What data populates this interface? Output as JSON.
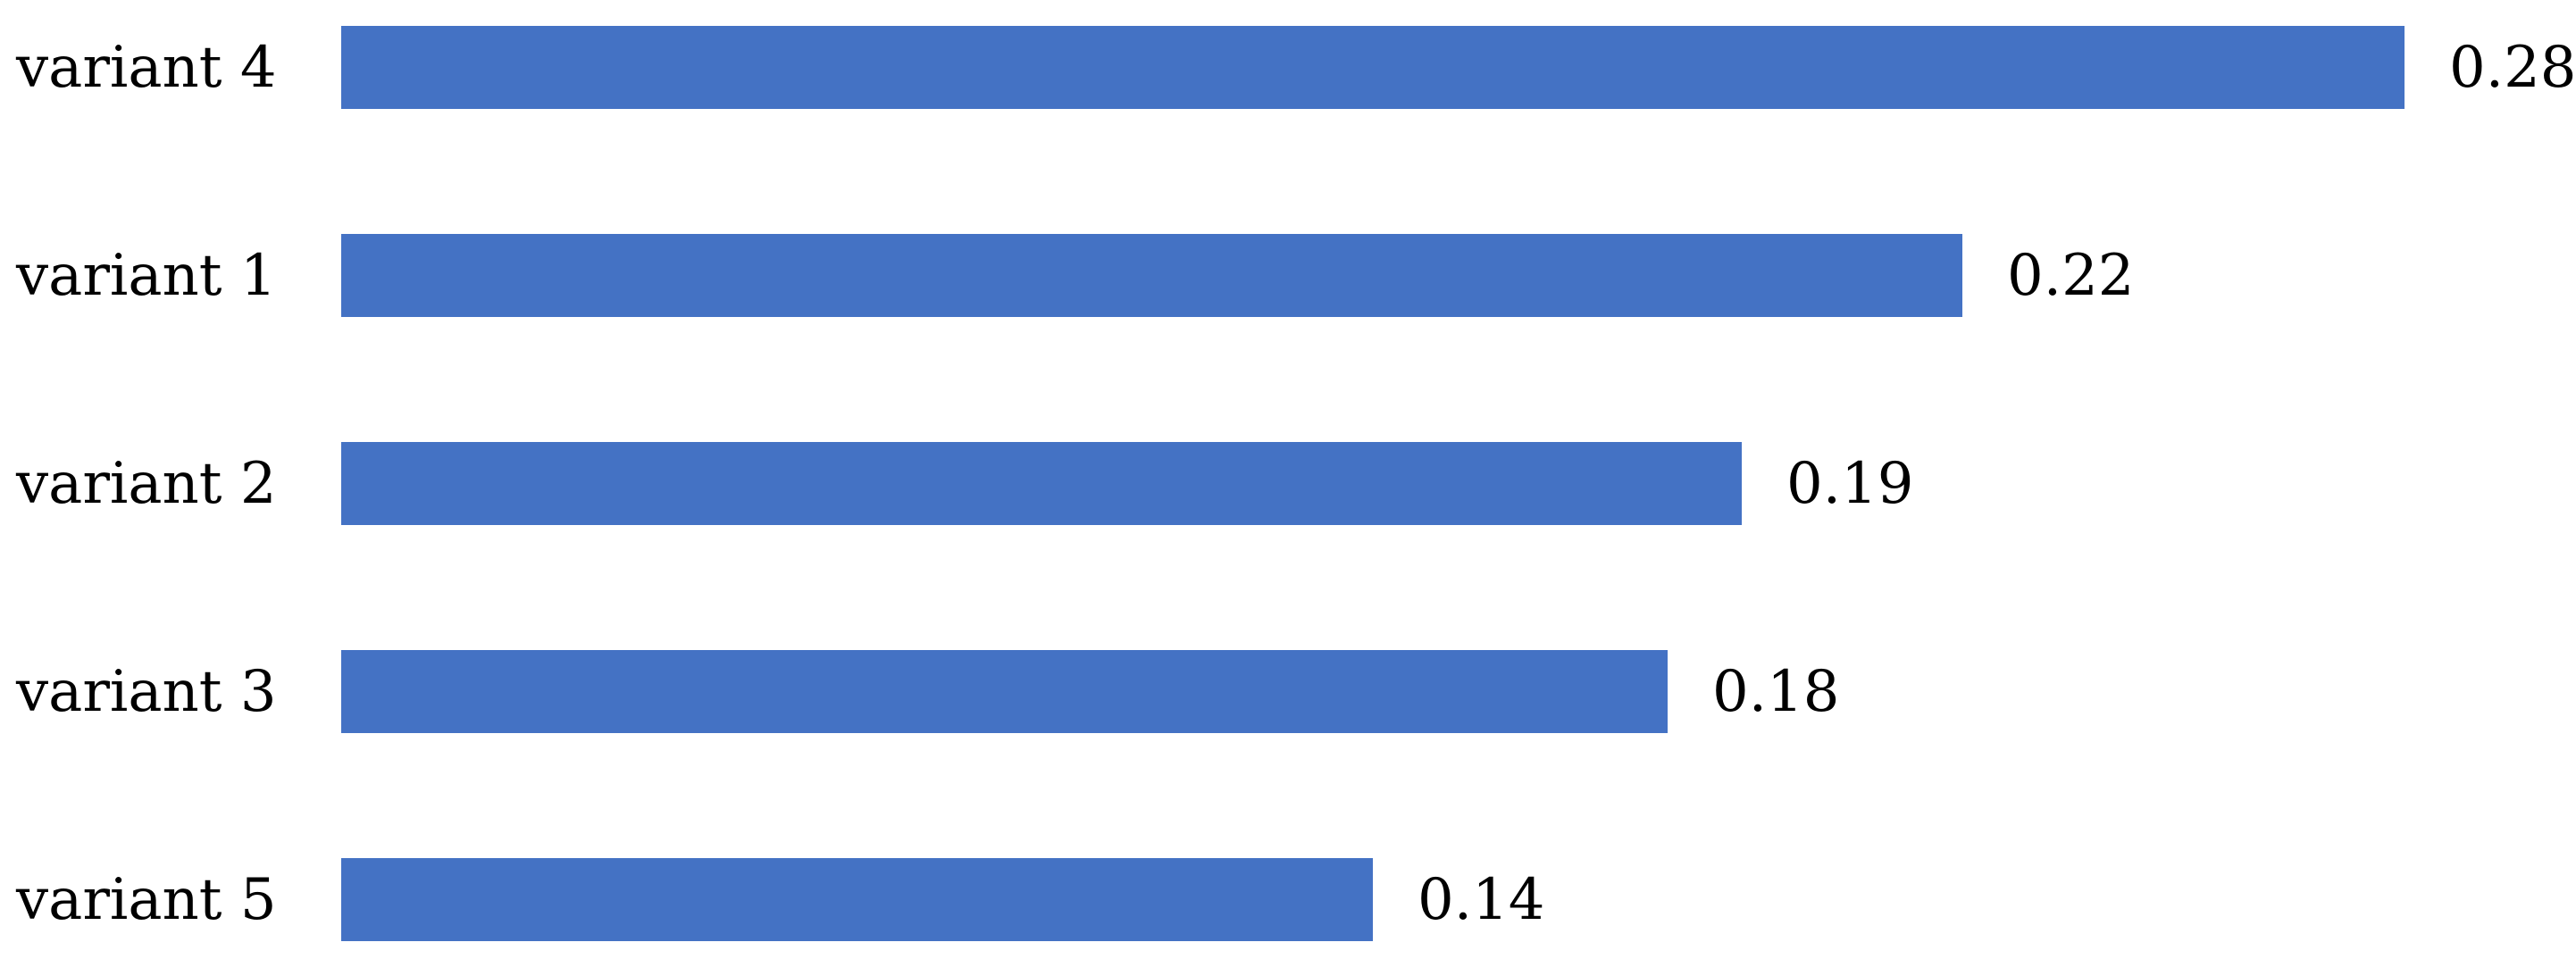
{
  "chart_data": {
    "type": "bar",
    "orientation": "horizontal",
    "title": "",
    "xlabel": "",
    "ylabel": "",
    "categories": [
      "variant 4",
      "variant 1",
      "variant 2",
      "variant 3",
      "variant 5"
    ],
    "values": [
      0.28,
      0.22,
      0.19,
      0.18,
      0.14
    ],
    "data_labels": [
      "0.28",
      "0.22",
      "0.19",
      "0.18",
      "0.14"
    ],
    "xlim": [
      0,
      0.3
    ],
    "grid": false,
    "legend": false,
    "axes_visible": false,
    "bar_color": "#4472C4",
    "text_color": "#000000",
    "background_color": "#ffffff"
  }
}
